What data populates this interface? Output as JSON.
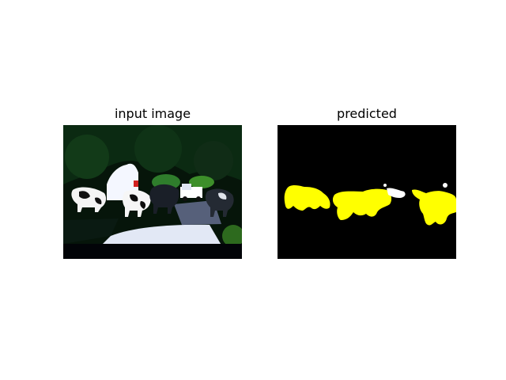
{
  "figure": {
    "panels": [
      {
        "title": "input image",
        "content": "photo of cows crossing a road at dusk, over-exposed contrast"
      },
      {
        "title": "predicted",
        "content": "segmentation mask: yellow cow regions with white fringes on black background"
      }
    ],
    "colors": {
      "background": "#ffffff",
      "mask_background": "#000000",
      "mask_class": "#ffff00",
      "mask_boundary": "#ffffff"
    }
  }
}
